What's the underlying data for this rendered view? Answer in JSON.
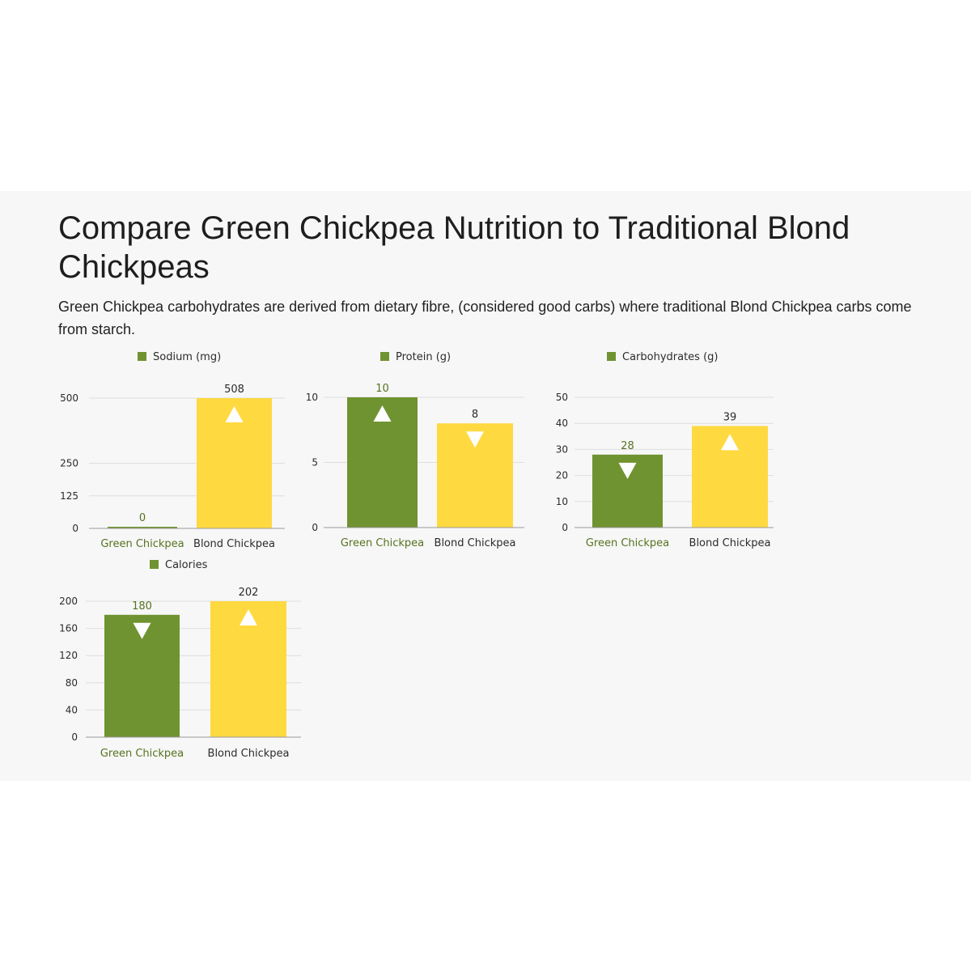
{
  "page": {
    "title": "Compare Green Chickpea Nutrition to Traditional Blond Chickpeas",
    "subtitle": "Green Chickpea carbohydrates are derived from dietary fibre, (considered good carbs) where traditional Blond Chickpea carbs come from starch."
  },
  "colors": {
    "green": "#709331",
    "yellow": "#FFD940",
    "green_text": "#56721F",
    "axis_text": "#2b2b2b",
    "grid": "#dedede",
    "baseline": "#9a9a9a"
  },
  "chart_data": [
    {
      "type": "bar",
      "title": "Sodium (mg)",
      "categories": [
        "Green Chickpea",
        "Blond Chickpea"
      ],
      "values": [
        0,
        508
      ],
      "data_labels": [
        "0",
        "508"
      ],
      "markers": [
        "",
        "up"
      ],
      "ylim": [
        0,
        500
      ],
      "yticks": [
        0,
        125,
        250,
        500
      ],
      "grid": true,
      "legend": "top"
    },
    {
      "type": "bar",
      "title": "Protein (g)",
      "categories": [
        "Green Chickpea",
        "Blond Chickpea"
      ],
      "values": [
        10,
        8
      ],
      "data_labels": [
        "10",
        "8"
      ],
      "markers": [
        "up",
        "down"
      ],
      "ylim": [
        0,
        10
      ],
      "yticks": [
        0,
        5,
        10
      ],
      "grid": true,
      "legend": "top"
    },
    {
      "type": "bar",
      "title": "Carbohydrates (g)",
      "categories": [
        "Green Chickpea",
        "Blond Chickpea"
      ],
      "values": [
        28,
        39
      ],
      "data_labels": [
        "28",
        "39"
      ],
      "markers": [
        "down",
        "up"
      ],
      "ylim": [
        0,
        50
      ],
      "yticks": [
        0,
        10,
        20,
        30,
        40,
        50
      ],
      "grid": true,
      "legend": "top"
    },
    {
      "type": "bar",
      "title": "Calories",
      "categories": [
        "Green Chickpea",
        "Blond Chickpea"
      ],
      "values": [
        180,
        202
      ],
      "data_labels": [
        "180",
        "202"
      ],
      "markers": [
        "down",
        "up"
      ],
      "ylim": [
        0,
        200
      ],
      "yticks": [
        0,
        40,
        80,
        120,
        160,
        200
      ],
      "grid": true,
      "legend": "top"
    }
  ]
}
